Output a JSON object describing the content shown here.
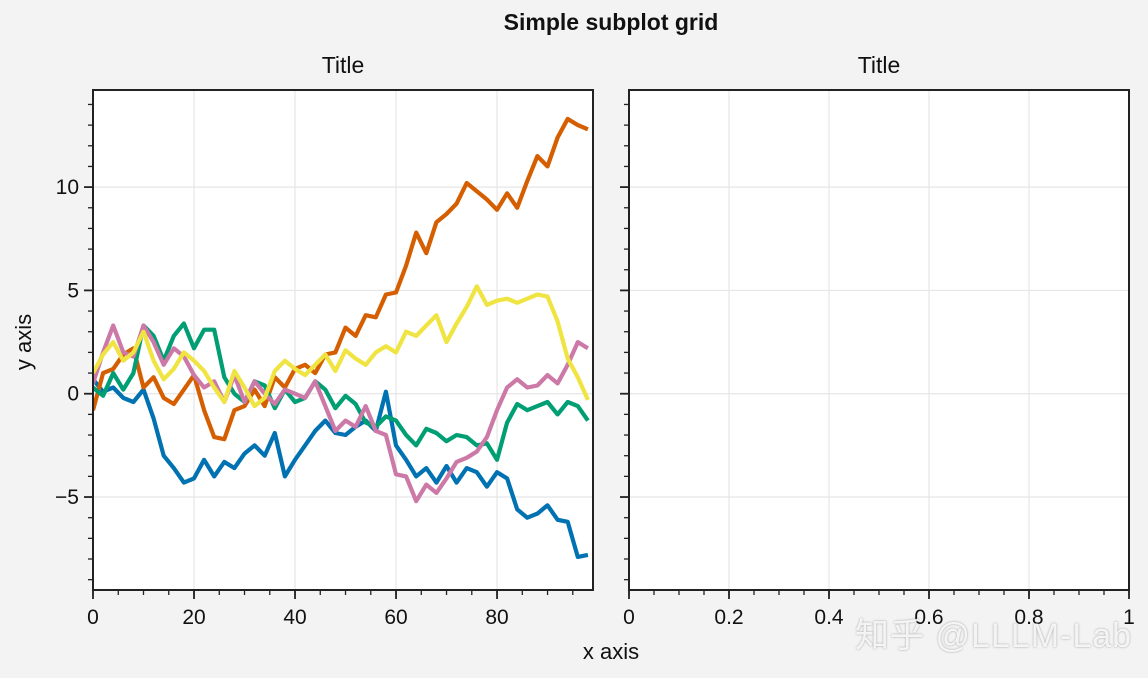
{
  "figure": {
    "suptitle": "Simple subplot grid",
    "xlabel": "x axis",
    "ylabel": "y axis",
    "watermark": "知乎 @LLLM-Lab"
  },
  "axes": [
    {
      "title": "Title",
      "xticks": [
        "0",
        "20",
        "40",
        "60",
        "80"
      ],
      "yticks": [
        "10",
        "5",
        "0",
        "−5"
      ]
    },
    {
      "title": "Title",
      "xticks": [
        "0",
        "0.2",
        "0.4",
        "0.6",
        "0.8",
        "1"
      ]
    }
  ],
  "colors": {
    "blue": "#0072b2",
    "orange": "#d55e00",
    "green": "#009e73",
    "pink": "#cc79a7",
    "yellow": "#f0e442",
    "background": "#f3f3f3",
    "grid": "#e6e6e6"
  },
  "chart_data": [
    {
      "type": "line",
      "title": "Title",
      "xlabel": "x axis",
      "ylabel": "y axis",
      "xlim": [
        0,
        99
      ],
      "ylim": [
        -9.5,
        14.7
      ],
      "grid": true,
      "legend": null,
      "x": [
        0,
        2,
        4,
        6,
        8,
        10,
        12,
        14,
        16,
        18,
        20,
        22,
        24,
        26,
        28,
        30,
        32,
        34,
        36,
        38,
        40,
        42,
        44,
        46,
        48,
        50,
        52,
        54,
        56,
        58,
        60,
        62,
        64,
        66,
        68,
        70,
        72,
        74,
        76,
        78,
        80,
        82,
        84,
        86,
        88,
        90,
        92,
        94,
        96,
        98
      ],
      "series": [
        {
          "name": "blue",
          "color": "#0072b2",
          "values": [
            0.7,
            0.1,
            0.3,
            -0.2,
            -0.4,
            0.2,
            -1.2,
            -3.0,
            -3.6,
            -4.3,
            -4.1,
            -3.2,
            -4.0,
            -3.3,
            -3.6,
            -2.9,
            -2.5,
            -3.0,
            -1.9,
            -4.0,
            -3.2,
            -2.5,
            -1.8,
            -1.3,
            -1.9,
            -2.0,
            -1.6,
            -1.3,
            -1.8,
            0.1,
            -2.5,
            -3.2,
            -4.0,
            -3.6,
            -4.3,
            -3.5,
            -4.3,
            -3.6,
            -3.8,
            -4.5,
            -3.8,
            -4.1,
            -5.6,
            -6.0,
            -5.8,
            -5.4,
            -6.1,
            -6.2,
            -7.9,
            -7.8
          ]
        },
        {
          "name": "orange",
          "color": "#d55e00",
          "values": [
            -0.8,
            1.0,
            1.2,
            1.9,
            2.2,
            0.3,
            0.8,
            -0.2,
            -0.5,
            0.2,
            0.9,
            -0.8,
            -2.1,
            -2.2,
            -0.8,
            -0.6,
            0.2,
            -0.6,
            0.8,
            0.3,
            1.2,
            1.4,
            1.0,
            1.9,
            2.0,
            3.2,
            2.8,
            3.8,
            3.7,
            4.8,
            4.9,
            6.2,
            7.8,
            6.8,
            8.3,
            8.7,
            9.2,
            10.2,
            9.8,
            9.4,
            8.9,
            9.7,
            9.0,
            10.3,
            11.5,
            11.0,
            12.4,
            13.3,
            13.0,
            12.8
          ]
        },
        {
          "name": "green",
          "color": "#009e73",
          "values": [
            0.3,
            -0.1,
            1.0,
            0.2,
            1.0,
            3.3,
            2.8,
            1.6,
            2.8,
            3.4,
            2.2,
            3.1,
            3.1,
            0.8,
            0.0,
            -0.4,
            0.6,
            0.4,
            -0.7,
            0.2,
            -0.4,
            -0.2,
            0.6,
            0.2,
            -0.7,
            -0.1,
            -0.5,
            -1.4,
            -1.6,
            -1.1,
            -1.3,
            -2.0,
            -2.5,
            -1.7,
            -1.9,
            -2.3,
            -2.0,
            -2.1,
            -2.5,
            -2.4,
            -3.2,
            -1.4,
            -0.5,
            -0.8,
            -0.6,
            -0.4,
            -1.0,
            -0.4,
            -0.6,
            -1.3
          ]
        },
        {
          "name": "pink",
          "color": "#cc79a7",
          "values": [
            0.5,
            2.0,
            3.3,
            2.0,
            1.8,
            3.3,
            2.5,
            1.4,
            2.2,
            1.8,
            0.9,
            0.3,
            0.6,
            -0.4,
            0.9,
            -0.4,
            0.6,
            0.0,
            -0.5,
            0.2,
            0.0,
            -0.2,
            0.6,
            -0.6,
            -1.8,
            -1.3,
            -1.6,
            -0.6,
            -1.8,
            -2.0,
            -3.9,
            -4.0,
            -5.2,
            -4.4,
            -4.8,
            -4.1,
            -3.3,
            -3.1,
            -2.8,
            -2.1,
            -0.8,
            0.3,
            0.7,
            0.3,
            0.4,
            0.9,
            0.5,
            1.4,
            2.5,
            2.2
          ]
        },
        {
          "name": "yellow",
          "color": "#f0e442",
          "values": [
            1.0,
            1.9,
            2.5,
            1.6,
            2.0,
            3.0,
            1.6,
            0.7,
            1.2,
            2.0,
            1.6,
            1.1,
            0.3,
            -0.4,
            1.1,
            0.3,
            -0.6,
            -0.2,
            1.1,
            1.6,
            1.2,
            0.9,
            1.4,
            1.9,
            1.1,
            2.1,
            1.7,
            1.4,
            2.0,
            2.3,
            2.0,
            3.0,
            2.8,
            3.3,
            3.8,
            2.5,
            3.4,
            4.2,
            5.2,
            4.3,
            4.5,
            4.6,
            4.4,
            4.6,
            4.8,
            4.7,
            3.5,
            1.7,
            0.8,
            -0.3
          ]
        }
      ]
    },
    {
      "type": "line",
      "title": "Title",
      "xlim": [
        0,
        1
      ],
      "ylim": [
        -9.5,
        14.7
      ],
      "grid": true,
      "series": []
    }
  ]
}
